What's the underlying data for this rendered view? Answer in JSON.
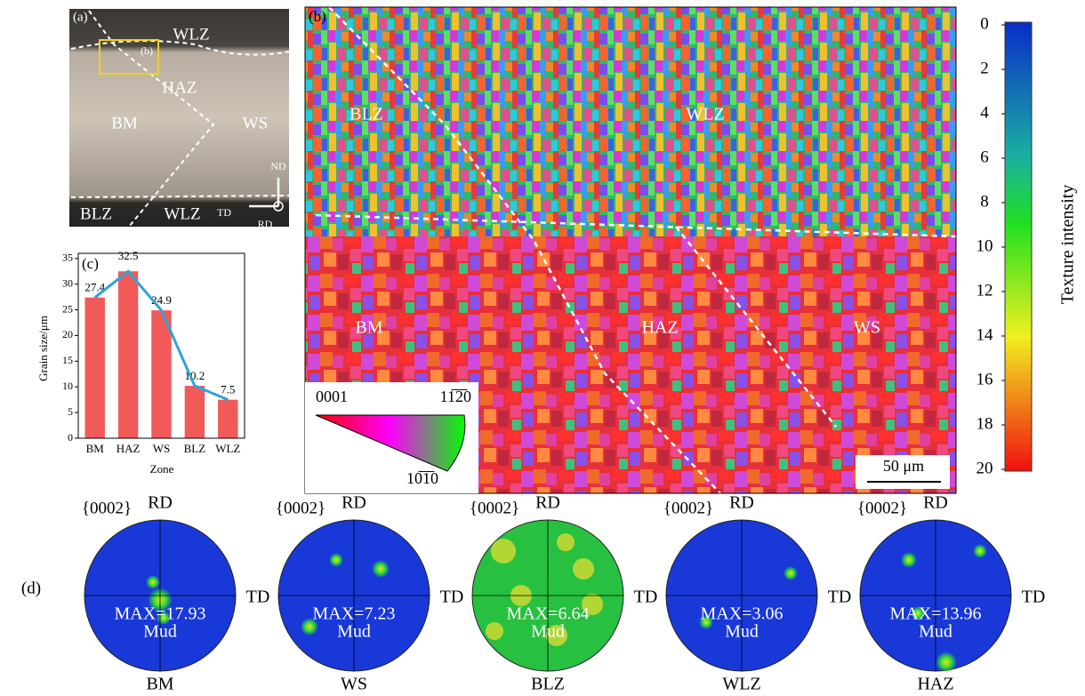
{
  "panel_a": {
    "label": "(a)",
    "zones": [
      "WLZ",
      "(b)",
      "HAZ",
      "BM",
      "WS",
      "BLZ",
      "WLZ"
    ],
    "axes": [
      "ND",
      "TD",
      "RD"
    ]
  },
  "panel_b": {
    "label": "(b)",
    "zones": [
      "BLZ",
      "WLZ",
      "BM",
      "HAZ",
      "WS"
    ],
    "ipf": [
      "0001",
      "11̅2̅0",
      "10̅1̅0"
    ],
    "scale_bar": "50 μm"
  },
  "chart_data": [
    {
      "type": "bar",
      "annotation": "(c)",
      "y_label": "Grain size/μm",
      "x_label": "Zone",
      "categories": [
        "BM",
        "HAZ",
        "WS",
        "BLZ",
        "WLZ"
      ],
      "values": [
        27.4,
        32.5,
        24.9,
        10.2,
        7.5
      ],
      "color": "#f25a5a",
      "line_color": "#2fa4d6",
      "ylim": [
        0,
        36
      ],
      "yticks": [
        0,
        5,
        10,
        15,
        20,
        25,
        30,
        35
      ]
    },
    {
      "type": "colorbar",
      "label": "Texture intensity",
      "ylim": [
        0,
        20
      ],
      "yticks": [
        0,
        2,
        4,
        6,
        8,
        10,
        12,
        14,
        16,
        18,
        20
      ]
    }
  ],
  "panel_d": {
    "label": "(d)",
    "pole_figures": [
      {
        "plane": "{0002}",
        "top": "RD",
        "right": "TD",
        "max": "MAX=17.93",
        "unit": "Mud",
        "name": "BM"
      },
      {
        "plane": "{0002}",
        "top": "RD",
        "right": "TD",
        "max": "MAX=7.23",
        "unit": "Mud",
        "name": "WS"
      },
      {
        "plane": "{0002}",
        "top": "RD",
        "right": "TD",
        "max": "MAX=6.64",
        "unit": "Mud",
        "name": "BLZ"
      },
      {
        "plane": "{0002}",
        "top": "RD",
        "right": "TD",
        "max": "MAX=3.06",
        "unit": "Mud",
        "name": "WLZ"
      },
      {
        "plane": "{0002}",
        "top": "RD",
        "right": "TD",
        "max": "MAX=13.96",
        "unit": "Mud",
        "name": "HAZ"
      }
    ]
  }
}
